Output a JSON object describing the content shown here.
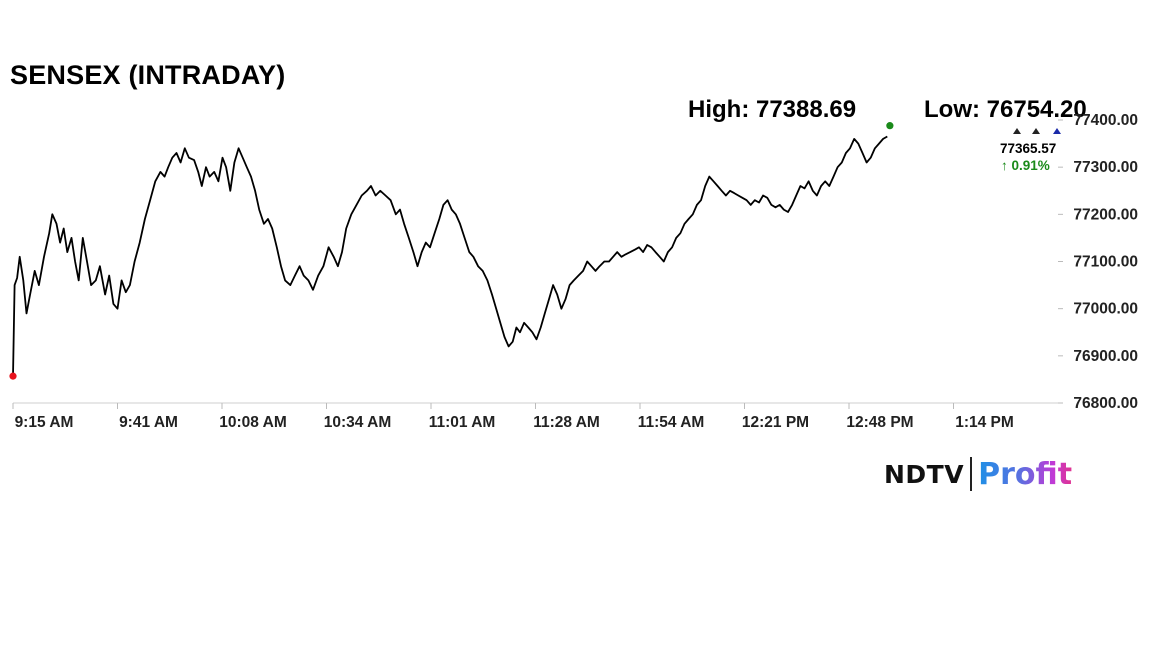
{
  "chart_data": {
    "type": "line",
    "title": "SENSEX (INTRADAY)",
    "high_text": "High: 77388.69",
    "low_text": "Low: 76754.20",
    "x_ticks": [
      "9:15 AM",
      "9:41 AM",
      "10:08 AM",
      "10:34 AM",
      "11:01 AM",
      "11:28 AM",
      "11:54 AM",
      "12:21 PM",
      "12:48 PM",
      "1:14 PM"
    ],
    "y_ticks": [
      "77400.00",
      "77300.00",
      "77200.00",
      "77100.00",
      "77000.00",
      "76900.00",
      "76800.00"
    ],
    "ylim": [
      76800,
      77400
    ],
    "x_unit": "minutes since 9:15 AM",
    "xlim": [
      0,
      202
    ],
    "grid": false,
    "last_value_label": "77365.57",
    "change_label": "↑ 0.91%",
    "open_value": 76857,
    "series": [
      {
        "name": "SENSEX",
        "points": [
          [
            0,
            76857
          ],
          [
            0.3,
            77050
          ],
          [
            0.8,
            77065
          ],
          [
            1.3,
            77110
          ],
          [
            2,
            77060
          ],
          [
            2.6,
            76990
          ],
          [
            3.3,
            77030
          ],
          [
            4.2,
            77080
          ],
          [
            5,
            77050
          ],
          [
            6,
            77110
          ],
          [
            7,
            77160
          ],
          [
            7.6,
            77200
          ],
          [
            8.4,
            77180
          ],
          [
            9.1,
            77140
          ],
          [
            9.8,
            77170
          ],
          [
            10.5,
            77120
          ],
          [
            11.3,
            77150
          ],
          [
            12,
            77100
          ],
          [
            12.7,
            77060
          ],
          [
            13.5,
            77150
          ],
          [
            14.3,
            77100
          ],
          [
            15.1,
            77050
          ],
          [
            16,
            77060
          ],
          [
            16.8,
            77090
          ],
          [
            17.8,
            77030
          ],
          [
            18.6,
            77070
          ],
          [
            19.4,
            77010
          ],
          [
            20.2,
            77000
          ],
          [
            21,
            77060
          ],
          [
            21.8,
            77035
          ],
          [
            22.6,
            77050
          ],
          [
            23.5,
            77100
          ],
          [
            24.5,
            77140
          ],
          [
            25.5,
            77190
          ],
          [
            26.5,
            77230
          ],
          [
            27.5,
            77270
          ],
          [
            28.5,
            77290
          ],
          [
            29.3,
            77280
          ],
          [
            30,
            77300
          ],
          [
            30.8,
            77320
          ],
          [
            31.6,
            77330
          ],
          [
            32.4,
            77310
          ],
          [
            33.2,
            77340
          ],
          [
            34,
            77320
          ],
          [
            35,
            77315
          ],
          [
            35.8,
            77290
          ],
          [
            36.5,
            77260
          ],
          [
            37.3,
            77300
          ],
          [
            38,
            77280
          ],
          [
            38.9,
            77290
          ],
          [
            39.7,
            77270
          ],
          [
            40.5,
            77320
          ],
          [
            41.2,
            77300
          ],
          [
            42,
            77250
          ],
          [
            42.8,
            77310
          ],
          [
            43.6,
            77340
          ],
          [
            44.4,
            77320
          ],
          [
            45.2,
            77300
          ],
          [
            46,
            77280
          ],
          [
            46.8,
            77250
          ],
          [
            47.6,
            77210
          ],
          [
            48.5,
            77180
          ],
          [
            49.3,
            77190
          ],
          [
            50.1,
            77170
          ],
          [
            51,
            77130
          ],
          [
            51.8,
            77090
          ],
          [
            52.6,
            77060
          ],
          [
            53.6,
            77050
          ],
          [
            54.5,
            77070
          ],
          [
            55.4,
            77090
          ],
          [
            56.2,
            77070
          ],
          [
            57.1,
            77060
          ],
          [
            58,
            77040
          ],
          [
            59,
            77070
          ],
          [
            60,
            77090
          ],
          [
            61,
            77130
          ],
          [
            62,
            77110
          ],
          [
            62.8,
            77090
          ],
          [
            63.6,
            77120
          ],
          [
            64.4,
            77170
          ],
          [
            65.4,
            77200
          ],
          [
            66.4,
            77220
          ],
          [
            67.4,
            77240
          ],
          [
            68.4,
            77250
          ],
          [
            69.2,
            77260
          ],
          [
            70.1,
            77240
          ],
          [
            71,
            77250
          ],
          [
            72,
            77240
          ],
          [
            73,
            77230
          ],
          [
            74,
            77200
          ],
          [
            74.8,
            77210
          ],
          [
            75.6,
            77180
          ],
          [
            76.5,
            77150
          ],
          [
            77.4,
            77120
          ],
          [
            78.2,
            77090
          ],
          [
            79,
            77120
          ],
          [
            79.8,
            77140
          ],
          [
            80.6,
            77130
          ],
          [
            81.5,
            77160
          ],
          [
            82.4,
            77190
          ],
          [
            83.2,
            77220
          ],
          [
            84,
            77230
          ],
          [
            84.8,
            77210
          ],
          [
            85.6,
            77200
          ],
          [
            86.4,
            77180
          ],
          [
            87.3,
            77150
          ],
          [
            88.2,
            77120
          ],
          [
            89,
            77110
          ],
          [
            89.9,
            77090
          ],
          [
            90.8,
            77080
          ],
          [
            91.7,
            77060
          ],
          [
            92.6,
            77030
          ],
          [
            93.4,
            77000
          ],
          [
            94.2,
            76970
          ],
          [
            95,
            76940
          ],
          [
            95.8,
            76920
          ],
          [
            96.6,
            76930
          ],
          [
            97.3,
            76960
          ],
          [
            98,
            76950
          ],
          [
            98.8,
            76970
          ],
          [
            99.6,
            76960
          ],
          [
            100.4,
            76950
          ],
          [
            101.2,
            76935
          ],
          [
            102,
            76960
          ],
          [
            102.8,
            76990
          ],
          [
            103.6,
            77020
          ],
          [
            104.4,
            77050
          ],
          [
            105.2,
            77030
          ],
          [
            106,
            77000
          ],
          [
            106.8,
            77020
          ],
          [
            107.6,
            77050
          ],
          [
            108.4,
            77060
          ],
          [
            109.3,
            77070
          ],
          [
            110.2,
            77080
          ],
          [
            111,
            77100
          ],
          [
            111.8,
            77090
          ],
          [
            112.6,
            77080
          ],
          [
            113.4,
            77090
          ],
          [
            114.3,
            77100
          ],
          [
            115.2,
            77100
          ],
          [
            116,
            77110
          ],
          [
            116.8,
            77120
          ],
          [
            117.6,
            77110
          ],
          [
            118.4,
            77115
          ],
          [
            119.3,
            77120
          ],
          [
            120.2,
            77125
          ],
          [
            121,
            77130
          ],
          [
            121.8,
            77120
          ],
          [
            122.6,
            77135
          ],
          [
            123.4,
            77130
          ],
          [
            124.2,
            77120
          ],
          [
            125,
            77110
          ],
          [
            125.8,
            77100
          ],
          [
            126.6,
            77120
          ],
          [
            127.4,
            77130
          ],
          [
            128.2,
            77150
          ],
          [
            129,
            77160
          ],
          [
            129.8,
            77180
          ],
          [
            130.6,
            77190
          ],
          [
            131.4,
            77200
          ],
          [
            132.2,
            77220
          ],
          [
            133,
            77230
          ],
          [
            133.8,
            77260
          ],
          [
            134.6,
            77280
          ],
          [
            135.4,
            77270
          ],
          [
            136.2,
            77260
          ],
          [
            137,
            77250
          ],
          [
            137.8,
            77240
          ],
          [
            138.6,
            77250
          ],
          [
            139.4,
            77245
          ],
          [
            140.2,
            77240
          ],
          [
            141,
            77235
          ],
          [
            141.8,
            77230
          ],
          [
            142.6,
            77220
          ],
          [
            143.4,
            77230
          ],
          [
            144.2,
            77225
          ],
          [
            145,
            77240
          ],
          [
            145.8,
            77235
          ],
          [
            146.6,
            77220
          ],
          [
            147.4,
            77215
          ],
          [
            148.2,
            77220
          ],
          [
            149,
            77210
          ],
          [
            149.8,
            77205
          ],
          [
            150.6,
            77220
          ],
          [
            151.4,
            77240
          ],
          [
            152.2,
            77260
          ],
          [
            153,
            77255
          ],
          [
            153.8,
            77270
          ],
          [
            154.6,
            77250
          ],
          [
            155.4,
            77240
          ],
          [
            156.2,
            77260
          ],
          [
            157,
            77270
          ],
          [
            157.8,
            77260
          ],
          [
            158.6,
            77280
          ],
          [
            159.4,
            77300
          ],
          [
            160.2,
            77310
          ],
          [
            161,
            77330
          ],
          [
            161.8,
            77340
          ],
          [
            162.6,
            77360
          ],
          [
            163.4,
            77350
          ],
          [
            164.2,
            77330
          ],
          [
            165,
            77310
          ],
          [
            165.8,
            77320
          ],
          [
            166.6,
            77340
          ],
          [
            167.4,
            77350
          ],
          [
            168.2,
            77360
          ],
          [
            169,
            77365
          ]
        ]
      }
    ]
  },
  "logo": {
    "part1": "NDTV",
    "part2": "Profit",
    "colors": [
      "#1e90e6",
      "#c13ad6",
      "#e0338f"
    ]
  },
  "colors": {
    "line": "#000000",
    "open_marker": "#e8141e",
    "high_marker": "#1a8a1a",
    "change_text": "#1a8a1a",
    "low_marker": "#1a2aa8"
  }
}
